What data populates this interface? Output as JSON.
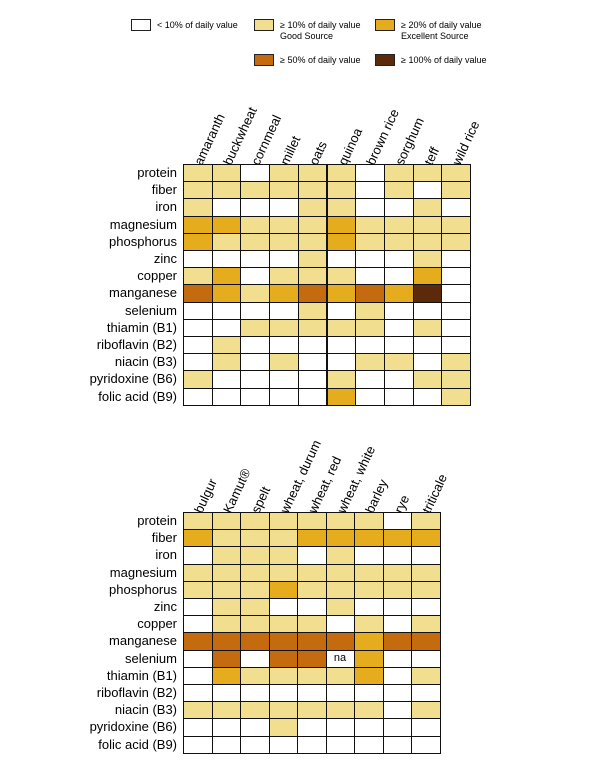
{
  "legend": {
    "items": [
      {
        "level": 0,
        "line1": "< 10% of daily value",
        "line2": ""
      },
      {
        "level": 1,
        "line1": "≥ 10% of daily value",
        "line2": "Good Source"
      },
      {
        "level": 2,
        "line1": "≥ 20% of daily value",
        "line2": "Excellent Source"
      },
      {
        "level": 3,
        "line1": "≥ 50% of daily value",
        "line2": ""
      },
      {
        "level": 4,
        "line1": "≥ 100% of daily value",
        "line2": ""
      }
    ]
  },
  "colors": {
    "0": "#ffffff",
    "1": "#f2de8f",
    "2": "#e5ac1e",
    "3": "#c46a0f",
    "4": "#5a2a0a"
  },
  "chart_data": [
    {
      "type": "heatmap",
      "title": "",
      "value_scale": "0 = <10%, 1 = >=10%, 2 = >=20%, 3 = >=50%, 4 = >=100% of daily value",
      "columns": [
        "amaranth",
        "buckwheat",
        "cornmeal",
        "millet",
        "oats",
        "quinoa",
        "brown rice",
        "sorghum",
        "teff",
        "wild rice"
      ],
      "rows": [
        "protein",
        "fiber",
        "iron",
        "magnesium",
        "phosphorus",
        "zinc",
        "copper",
        "manganese",
        "selenium",
        "thiamin (B1)",
        "riboflavin (B2)",
        "niacin (B3)",
        "pyridoxine (B6)",
        "folic acid (B9)"
      ],
      "values": [
        [
          1,
          1,
          0,
          1,
          1,
          1,
          0,
          1,
          1,
          1
        ],
        [
          1,
          1,
          1,
          1,
          1,
          1,
          0,
          1,
          0,
          1
        ],
        [
          1,
          0,
          0,
          0,
          1,
          1,
          0,
          0,
          1,
          0
        ],
        [
          2,
          2,
          1,
          1,
          1,
          2,
          1,
          1,
          1,
          1
        ],
        [
          2,
          1,
          1,
          1,
          1,
          2,
          1,
          1,
          1,
          1
        ],
        [
          0,
          0,
          0,
          0,
          1,
          0,
          0,
          0,
          1,
          0
        ],
        [
          1,
          2,
          0,
          1,
          1,
          1,
          0,
          0,
          2,
          0
        ],
        [
          3,
          2,
          1,
          2,
          3,
          2,
          3,
          2,
          4,
          0
        ],
        [
          0,
          0,
          0,
          0,
          1,
          0,
          1,
          0,
          0,
          0
        ],
        [
          0,
          0,
          1,
          1,
          1,
          1,
          1,
          0,
          1,
          0
        ],
        [
          0,
          1,
          0,
          0,
          0,
          0,
          0,
          0,
          0,
          0
        ],
        [
          0,
          1,
          0,
          1,
          0,
          0,
          1,
          1,
          0,
          1
        ],
        [
          1,
          0,
          0,
          0,
          0,
          1,
          0,
          0,
          1,
          1
        ],
        [
          0,
          0,
          0,
          0,
          0,
          2,
          0,
          0,
          0,
          1
        ]
      ],
      "annotations": []
    },
    {
      "type": "heatmap",
      "title": "",
      "value_scale": "0 = <10%, 1 = >=10%, 2 = >=20%, 3 = >=50%, 4 = >=100% of daily value",
      "columns": [
        "bulgur",
        "Kamut®",
        "spelt",
        "wheat, durum",
        "wheat, red",
        "wheat, white",
        "barley",
        "rye",
        "triticale"
      ],
      "rows": [
        "protein",
        "fiber",
        "iron",
        "magnesium",
        "phosphorus",
        "zinc",
        "copper",
        "manganese",
        "selenium",
        "thiamin (B1)",
        "riboflavin (B2)",
        "niacin (B3)",
        "pyridoxine (B6)",
        "folic acid (B9)"
      ],
      "values": [
        [
          1,
          1,
          1,
          1,
          1,
          1,
          1,
          0,
          1
        ],
        [
          2,
          1,
          1,
          1,
          2,
          2,
          2,
          2,
          2
        ],
        [
          0,
          1,
          1,
          1,
          0,
          1,
          0,
          0,
          0
        ],
        [
          1,
          1,
          1,
          1,
          1,
          1,
          1,
          1,
          1
        ],
        [
          1,
          1,
          1,
          2,
          1,
          1,
          1,
          1,
          1
        ],
        [
          0,
          1,
          1,
          0,
          0,
          1,
          0,
          0,
          0
        ],
        [
          0,
          1,
          1,
          1,
          1,
          0,
          1,
          0,
          1
        ],
        [
          3,
          3,
          3,
          3,
          3,
          3,
          2,
          3,
          3
        ],
        [
          0,
          3,
          0,
          3,
          3,
          0,
          2,
          0,
          0
        ],
        [
          0,
          2,
          1,
          1,
          1,
          1,
          2,
          0,
          1
        ],
        [
          0,
          0,
          0,
          0,
          0,
          0,
          0,
          0,
          0
        ],
        [
          1,
          1,
          1,
          1,
          1,
          1,
          1,
          0,
          1
        ],
        [
          0,
          0,
          0,
          1,
          0,
          0,
          0,
          0,
          0
        ],
        [
          0,
          0,
          0,
          0,
          0,
          0,
          0,
          0,
          0
        ]
      ],
      "annotations": [
        {
          "row": 8,
          "col": 5,
          "text": "na"
        }
      ]
    }
  ]
}
